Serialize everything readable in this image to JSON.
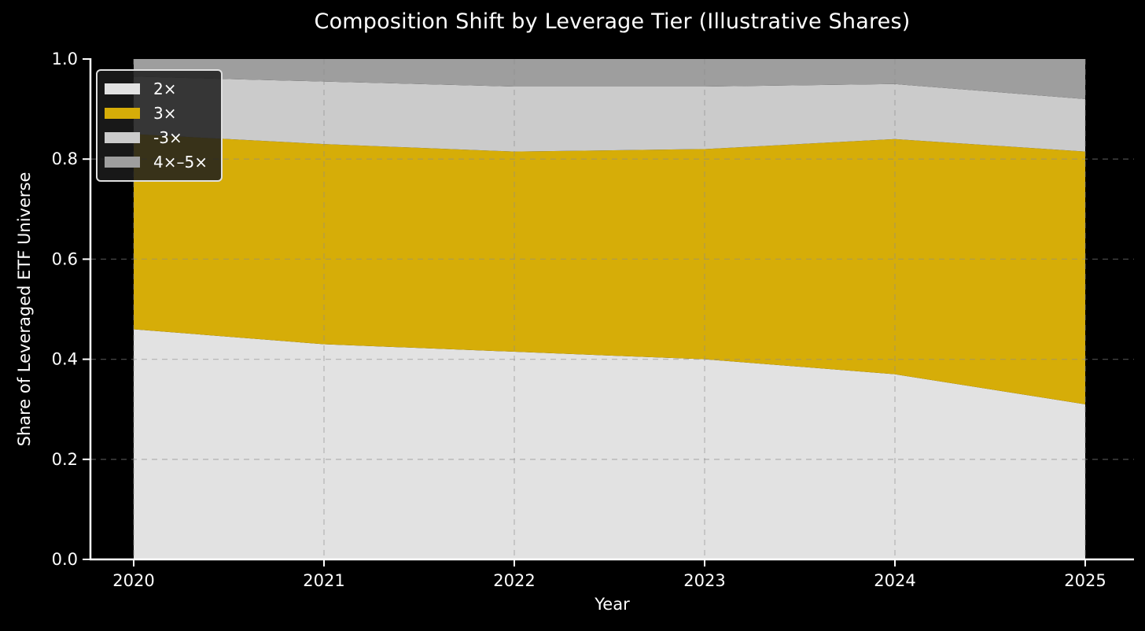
{
  "figure": {
    "background": "#000000",
    "text_color": "#ffffff",
    "grid_color": "#8c8c8c"
  },
  "chart_data": {
    "type": "area",
    "stacked": true,
    "title": "Composition Shift by Leverage Tier (Illustrative Shares)",
    "xlabel": "Year",
    "ylabel": "Share of Leveraged ETF Universe",
    "x": [
      2020,
      2021,
      2022,
      2023,
      2024,
      2025
    ],
    "xtick_labels": [
      "2020",
      "2021",
      "2022",
      "2023",
      "2024",
      "2025"
    ],
    "yticks": [
      0.0,
      0.2,
      0.4,
      0.6,
      0.8,
      1.0
    ],
    "ytick_labels": [
      "0.0",
      "0.2",
      "0.4",
      "0.6",
      "0.8",
      "1.0"
    ],
    "ylim": [
      0.0,
      1.0
    ],
    "grid": true,
    "grid_style": "dashed",
    "legend_position": "upper-left",
    "legend_labels": [
      "2×",
      "3×",
      "-3×",
      "4×–5×"
    ],
    "series": [
      {
        "name": "2×",
        "color": "#e2e2e2",
        "values": [
          0.46,
          0.43,
          0.415,
          0.4,
          0.37,
          0.31
        ]
      },
      {
        "name": "3×",
        "color": "#d6ad08",
        "values": [
          0.39,
          0.4,
          0.4,
          0.42,
          0.47,
          0.505
        ]
      },
      {
        "name": "-3×",
        "color": "#cbcbcb",
        "values": [
          0.115,
          0.125,
          0.13,
          0.125,
          0.11,
          0.105
        ]
      },
      {
        "name": "4×–5×",
        "color": "#9e9e9e",
        "values": [
          0.035,
          0.045,
          0.055,
          0.055,
          0.05,
          0.08
        ]
      }
    ]
  }
}
